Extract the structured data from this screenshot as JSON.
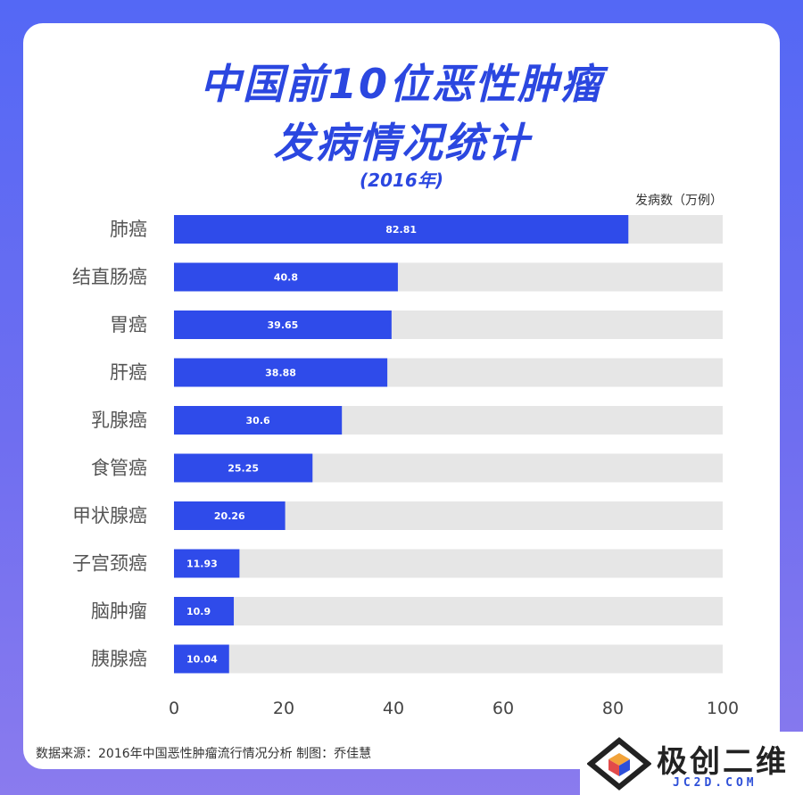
{
  "header": {
    "title_line1": "中国前10位恶性肿瘤",
    "title_line2": "发病情况统计",
    "subtitle": "(2016年)",
    "unit_label": "发病数（万例）"
  },
  "footer": {
    "source": "数据来源：2016年中国恶性肿瘤流行情况分析   制图：乔佳慧"
  },
  "watermark": {
    "text": "极创二维",
    "url": "JC2D.COM"
  },
  "colors": {
    "bar": "#2f4bea",
    "track": "#e6e6e6",
    "title": "#2b47e0",
    "background": "#5a69f2"
  },
  "chart_data": {
    "type": "bar",
    "orientation": "horizontal",
    "categories": [
      "肺癌",
      "结直肠癌",
      "胃癌",
      "肝癌",
      "乳腺癌",
      "食管癌",
      "甲状腺癌",
      "子宫颈癌",
      "脑肿瘤",
      "胰腺癌"
    ],
    "values": [
      82.81,
      40.8,
      39.65,
      38.88,
      30.6,
      25.25,
      20.26,
      11.93,
      10.9,
      10.04
    ],
    "value_labels": [
      "82.81",
      "40.8",
      "39.65",
      "38.88",
      "30.6",
      "25.25",
      "20.26",
      "11.93",
      "10.9",
      "10.04"
    ],
    "xlim": [
      0,
      100
    ],
    "xticks": [
      0,
      20,
      40,
      60,
      80,
      100
    ],
    "grid": false,
    "legend": "none"
  }
}
